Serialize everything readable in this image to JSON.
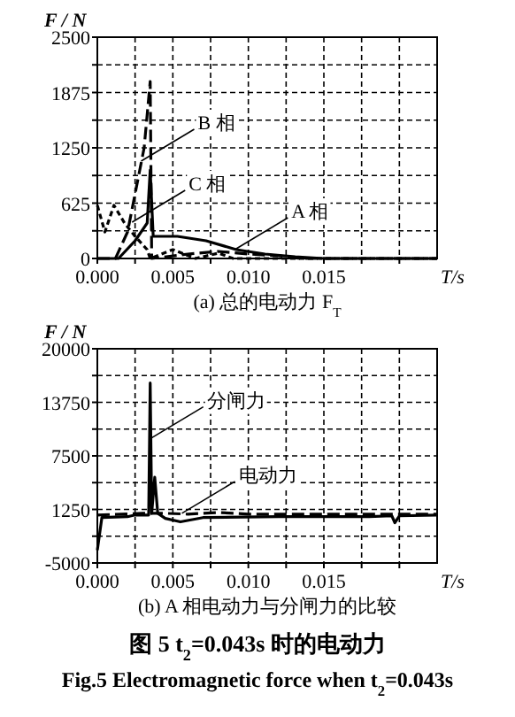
{
  "chart_data": [
    {
      "type": "line",
      "title": "(a)  总的电动力 F$_{T}$",
      "xlabel": "T/s",
      "ylabel": "F / N",
      "xlim": [
        0,
        0.0225
      ],
      "xticks": [
        {
          "value": 0,
          "label": "0.000"
        },
        {
          "value": 0.0025,
          "label": null
        },
        {
          "value": 0.005,
          "label": "0.005"
        },
        {
          "value": 0.0075,
          "label": null
        },
        {
          "value": 0.01,
          "label": "0.010"
        },
        {
          "value": 0.0125,
          "label": null
        },
        {
          "value": 0.015,
          "label": "0.015"
        },
        {
          "value": 0.0175,
          "label": null
        },
        {
          "value": 0.02,
          "label": null
        }
      ],
      "ylim": [
        0,
        2500
      ],
      "yticks": [
        0,
        {
          "value": 312.5,
          "label": null
        },
        625,
        {
          "value": 937.5,
          "label": null
        },
        1250,
        {
          "value": 1562.5,
          "label": null
        },
        1875,
        {
          "value": 2187.5,
          "label": null
        },
        2500
      ],
      "grid": true,
      "series": [
        {
          "color": "#000000",
          "line_style": "solid",
          "x": [
            0,
            0.0014,
            0.0025,
            0.0033,
            0.0035,
            0.0037,
            0.0053,
            0.0072,
            0.0092,
            0.0111,
            0.0131,
            0.015,
            0.0225
          ],
          "values": [
            0,
            0,
            200,
            400,
            1000,
            250,
            250,
            200,
            100,
            50,
            20,
            0,
            0
          ]
        },
        {
          "color": "#000000",
          "line_style": "dashed",
          "x": [
            0,
            0.0012,
            0.002,
            0.0031,
            0.0035,
            0.0036,
            0.006,
            0.008,
            0.01,
            0.012,
            0.0135,
            0.0225
          ],
          "values": [
            0,
            0,
            300,
            1250,
            2000,
            0,
            50,
            80,
            50,
            30,
            0,
            0
          ]
        },
        {
          "color": "#000000",
          "line_style": "dotted",
          "x": [
            0,
            0.0005,
            0.0011,
            0.0018,
            0.0025,
            0.0033,
            0.0035,
            0.005,
            0.0065,
            0.008,
            0.009,
            0.0225
          ],
          "values": [
            600,
            300,
            600,
            400,
            250,
            100,
            0,
            100,
            0,
            60,
            0,
            0
          ]
        }
      ],
      "annotations": [
        {
          "text": "B 相",
          "x": 0.0029,
          "y": 1100
        },
        {
          "text": "C 相",
          "x": 0.0023,
          "y": 410
        },
        {
          "text": "A 相",
          "x": 0.0091,
          "y": 100
        }
      ]
    },
    {
      "type": "line",
      "title": "(b)  A 相电动力与分闸力的比较",
      "xlabel": "T/s",
      "ylabel": "F / N",
      "xlim": [
        0,
        0.0225
      ],
      "xticks": [
        {
          "value": 0,
          "label": "0.000"
        },
        {
          "value": 0.0025,
          "label": null
        },
        {
          "value": 0.005,
          "label": "0.005"
        },
        {
          "value": 0.0075,
          "label": null
        },
        {
          "value": 0.01,
          "label": "0.010"
        },
        {
          "value": 0.0125,
          "label": null
        },
        {
          "value": 0.015,
          "label": "0.015"
        },
        {
          "value": 0.0175,
          "label": null
        },
        {
          "value": 0.02,
          "label": null
        }
      ],
      "ylim": [
        -5000,
        20000
      ],
      "yticks": [
        -5000,
        {
          "value": -1875,
          "label": null
        },
        1250,
        {
          "value": 4375,
          "label": null
        },
        7500,
        {
          "value": 10625,
          "label": null
        },
        13750,
        {
          "value": 16875,
          "label": null
        },
        20000
      ],
      "grid": true,
      "series": [
        {
          "color": "#000000",
          "line_style": "solid",
          "x": [
            0,
            0.0003,
            0.002,
            0.0025,
            0.0034,
            0.0035,
            0.0036,
            0.0038,
            0.004,
            0.0045,
            0.0055,
            0.007,
            0.012,
            0.018,
            0.0195,
            0.0197,
            0.02,
            0.0225
          ],
          "values": [
            -3500,
            300,
            400,
            600,
            600,
            16000,
            800,
            5000,
            800,
            200,
            -200,
            300,
            400,
            400,
            500,
            -300,
            500,
            600
          ]
        },
        {
          "color": "#000000",
          "line_style": "dashed",
          "x": [
            0,
            0.003,
            0.0045,
            0.006,
            0.008,
            0.01,
            0.015,
            0.0225
          ],
          "values": [
            600,
            800,
            800,
            700,
            900,
            700,
            700,
            700
          ]
        }
      ],
      "annotations": [
        {
          "text": "分闸力",
          "x": 0.0035,
          "y": 9500
        },
        {
          "text": "电动力",
          "x": 0.0056,
          "y": 800
        },
        "图 5    t$_{2}$=0.043s 时的电动力",
        "Fig.5    Electromagnetic force when t$_{2}$=0.043s"
      ]
    }
  ]
}
